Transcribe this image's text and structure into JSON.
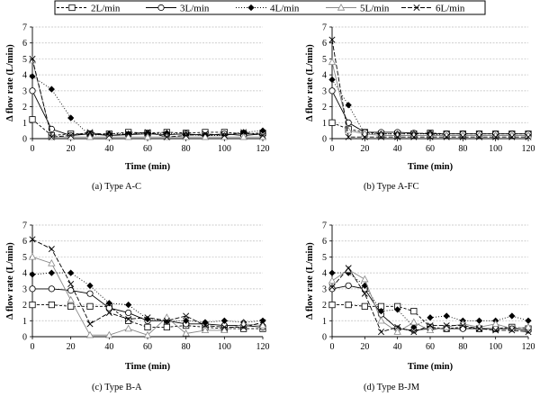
{
  "legend": [
    {
      "label": "2L/min",
      "dash": "3,2",
      "marker": "square"
    },
    {
      "label": "3L/min",
      "dash": "",
      "marker": "circle"
    },
    {
      "label": "4L/min",
      "dash": "1,2",
      "marker": "diamond"
    },
    {
      "label": "5L/min",
      "dash": "",
      "marker": "triangle"
    },
    {
      "label": "6L/min",
      "dash": "5,2",
      "marker": "cross"
    }
  ],
  "chart_data": [
    {
      "type": "line",
      "caption": "(a)  Type  A-C",
      "xlabel": "Time (min)",
      "ylabel": "Δ flow rate (L/min)",
      "xlim": [
        0,
        120
      ],
      "ylim": [
        0,
        7
      ],
      "xticks": [
        "0",
        "20",
        "40",
        "60",
        "80",
        "100",
        "120"
      ],
      "yticks": [
        "0",
        "1",
        "2",
        "3",
        "4",
        "5",
        "6",
        "7"
      ],
      "grid": "horizontal",
      "x": [
        0,
        10,
        20,
        30,
        40,
        50,
        60,
        70,
        80,
        90,
        100,
        110,
        120
      ],
      "series": [
        {
          "name": "2L/min",
          "values": [
            1.2,
            0.2,
            0.3,
            0.3,
            0.3,
            0.4,
            0.35,
            0.4,
            0.35,
            0.4,
            0.4,
            0.3,
            0.35
          ]
        },
        {
          "name": "3L/min",
          "values": [
            3.0,
            0.6,
            0.2,
            0.3,
            0.2,
            0.25,
            0.3,
            0.25,
            0.3,
            0.2,
            0.3,
            0.2,
            0.3
          ]
        },
        {
          "name": "4L/min",
          "values": [
            3.9,
            3.1,
            1.3,
            0.2,
            0.3,
            0.3,
            0.3,
            0.35,
            0.25,
            0.2,
            0.2,
            0.4,
            0.5
          ]
        },
        {
          "name": "5L/min",
          "values": [
            4.9,
            0.1,
            0.1,
            0.1,
            0.1,
            0.1,
            0.1,
            0.1,
            0.1,
            0.1,
            0.1,
            0.1,
            0.1
          ]
        },
        {
          "name": "6L/min",
          "values": [
            5.0,
            0.1,
            0.2,
            0.4,
            0.2,
            0.3,
            0.4,
            0.1,
            0.2,
            0.3,
            0.2,
            0.4,
            0.2
          ]
        }
      ]
    },
    {
      "type": "line",
      "caption": "(b)  Type  A-FC",
      "xlabel": "Time (min)",
      "ylabel": "Δ flow rate (L/min)",
      "xlim": [
        0,
        120
      ],
      "ylim": [
        0,
        7
      ],
      "xticks": [
        "0",
        "20",
        "40",
        "60",
        "80",
        "100",
        "120"
      ],
      "yticks": [
        "0",
        "1",
        "2",
        "3",
        "4",
        "5",
        "6",
        "7"
      ],
      "grid": "horizontal",
      "x": [
        0,
        10,
        20,
        30,
        40,
        50,
        60,
        70,
        80,
        90,
        100,
        110,
        120
      ],
      "series": [
        {
          "name": "2L/min",
          "values": [
            1.0,
            0.6,
            0.4,
            0.3,
            0.3,
            0.3,
            0.35,
            0.3,
            0.3,
            0.3,
            0.3,
            0.3,
            0.3
          ]
        },
        {
          "name": "3L/min",
          "values": [
            3.0,
            1.0,
            0.4,
            0.4,
            0.4,
            0.35,
            0.3,
            0.3,
            0.3,
            0.3,
            0.3,
            0.3,
            0.3
          ]
        },
        {
          "name": "4L/min",
          "values": [
            3.7,
            2.1,
            0.3,
            0.3,
            0.3,
            0.3,
            0.3,
            0.2,
            0.2,
            0.2,
            0.2,
            0.2,
            0.2
          ]
        },
        {
          "name": "5L/min",
          "values": [
            4.8,
            0.5,
            0.3,
            0.2,
            0.2,
            0.2,
            0.2,
            0.2,
            0.2,
            0.2,
            0.2,
            0.2,
            0.2
          ]
        },
        {
          "name": "6L/min",
          "values": [
            6.2,
            0.1,
            0.1,
            0.1,
            0.1,
            0.1,
            0.1,
            0.1,
            0.1,
            0.1,
            0.1,
            0.1,
            0.1
          ]
        }
      ]
    },
    {
      "type": "line",
      "caption": "(c)  Type  B-A",
      "xlabel": "Time (min)",
      "ylabel": "Δ flow rate (L/min)",
      "xlim": [
        0,
        120
      ],
      "ylim": [
        0,
        7
      ],
      "xticks": [
        "0",
        "20",
        "40",
        "60",
        "80",
        "100",
        "120"
      ],
      "yticks": [
        "0",
        "1",
        "2",
        "3",
        "4",
        "5",
        "6",
        "7"
      ],
      "grid": "horizontal",
      "x": [
        0,
        10,
        20,
        30,
        40,
        50,
        60,
        70,
        80,
        90,
        100,
        110,
        120
      ],
      "series": [
        {
          "name": "2L/min",
          "values": [
            2.0,
            2.0,
            1.9,
            1.9,
            1.9,
            1.0,
            0.6,
            0.6,
            0.7,
            0.6,
            0.5,
            0.5,
            0.5
          ]
        },
        {
          "name": "3L/min",
          "values": [
            3.0,
            3.0,
            2.9,
            2.7,
            1.8,
            1.5,
            1.0,
            1.0,
            0.8,
            0.8,
            0.7,
            0.7,
            0.6
          ]
        },
        {
          "name": "4L/min",
          "values": [
            3.9,
            4.0,
            4.0,
            3.2,
            2.1,
            2.0,
            1.1,
            1.0,
            1.0,
            0.9,
            1.0,
            0.9,
            1.0
          ]
        },
        {
          "name": "5L/min",
          "values": [
            5.0,
            4.6,
            2.3,
            0.1,
            0.1,
            0.5,
            0.1,
            1.2,
            0.2,
            0.4,
            0.4,
            0.8,
            0.7
          ]
        },
        {
          "name": "6L/min",
          "values": [
            6.1,
            5.5,
            3.3,
            0.8,
            1.5,
            1.1,
            1.2,
            1.0,
            1.3,
            0.7,
            0.6,
            0.6,
            0.9
          ]
        }
      ]
    },
    {
      "type": "line",
      "caption": "(d)  Type  B-JM",
      "xlabel": "Time (min)",
      "ylabel": "Δ flow rate (L/min)",
      "xlim": [
        0,
        120
      ],
      "ylim": [
        0,
        7
      ],
      "xticks": [
        "0",
        "20",
        "40",
        "60",
        "80",
        "100",
        "120"
      ],
      "yticks": [
        "0",
        "1",
        "2",
        "3",
        "4",
        "5",
        "6",
        "7"
      ],
      "grid": "horizontal",
      "x": [
        0,
        10,
        20,
        30,
        40,
        50,
        60,
        70,
        80,
        90,
        100,
        110,
        120
      ],
      "series": [
        {
          "name": "2L/min",
          "values": [
            2.0,
            2.0,
            1.9,
            1.9,
            1.9,
            1.6,
            0.6,
            0.5,
            0.6,
            0.5,
            0.5,
            0.6,
            0.5
          ]
        },
        {
          "name": "3L/min",
          "values": [
            3.0,
            3.2,
            3.0,
            1.4,
            0.5,
            0.4,
            0.5,
            0.5,
            0.5,
            0.5,
            0.5,
            0.5,
            0.4
          ]
        },
        {
          "name": "4L/min",
          "values": [
            4.0,
            4.0,
            3.2,
            1.6,
            1.7,
            0.6,
            1.2,
            1.3,
            1.0,
            1.0,
            1.0,
            1.3,
            1.0
          ]
        },
        {
          "name": "5L/min",
          "values": [
            3.5,
            4.2,
            3.6,
            1.0,
            0.3,
            0.9,
            0.4,
            0.6,
            0.8,
            0.6,
            0.8,
            0.5,
            0.6
          ]
        },
        {
          "name": "6L/min",
          "values": [
            3.1,
            4.3,
            2.7,
            0.3,
            0.6,
            0.3,
            0.7,
            0.7,
            0.7,
            0.5,
            0.4,
            0.4,
            0.3
          ]
        }
      ]
    }
  ]
}
